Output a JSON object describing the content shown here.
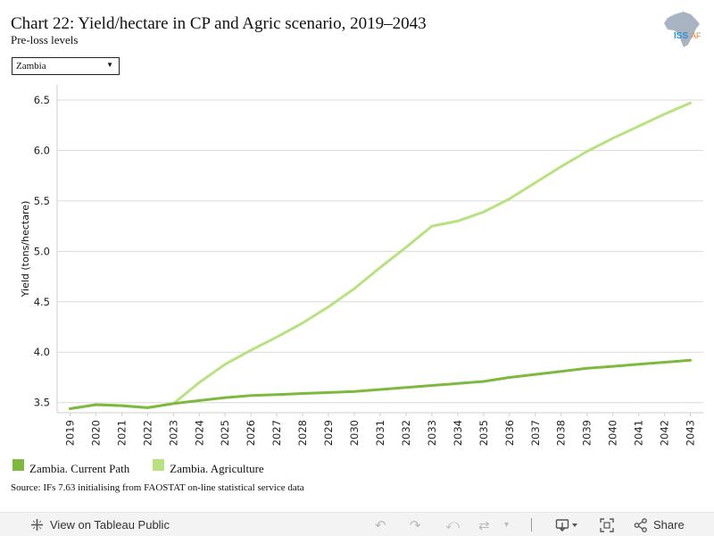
{
  "header": {
    "title": "Chart 22: Yield/hectare in CP and Agric scenario, 2019–2043",
    "subtitle": "Pre-loss levels",
    "logo_text": "ISS AFRICAN FUTURES"
  },
  "filter": {
    "selected": "Zambia"
  },
  "legend": {
    "items": [
      {
        "label": "Zambia. Current Path",
        "color": "#7db93f"
      },
      {
        "label": "Zambia. Agriculture",
        "color": "#b7e27f"
      }
    ]
  },
  "source": "Source: IFs 7.63 initialising from FAOSTAT on-line statistical service data",
  "toolbar": {
    "view_label": "View on Tableau Public",
    "share_label": "Share",
    "icons": [
      "tableau-icon",
      "undo-icon",
      "redo-icon",
      "revert-icon",
      "refresh-icon",
      "pause-icon",
      "download-icon",
      "fullscreen-icon",
      "share-icon"
    ]
  },
  "chart_data": {
    "type": "line",
    "title": "Chart 22: Yield/hectare in CP and Agric scenario, 2019–2043",
    "subtitle": "Pre-loss levels",
    "xlabel": "",
    "ylabel": "Yield (tons/hectare)",
    "ylim": [
      3.4,
      6.65
    ],
    "yticks": [
      "3.5",
      "4.0",
      "4.5",
      "5.0",
      "5.5",
      "6.0",
      "6.5"
    ],
    "grid": true,
    "legend_position": "bottom-left",
    "x": [
      "2019",
      "2020",
      "2021",
      "2022",
      "2023",
      "2024",
      "2025",
      "2026",
      "2027",
      "2028",
      "2029",
      "2030",
      "2031",
      "2032",
      "2033",
      "2034",
      "2035",
      "2036",
      "2037",
      "2038",
      "2039",
      "2040",
      "2041",
      "2042",
      "2043"
    ],
    "series": [
      {
        "name": "Zambia. Current Path",
        "color": "#7db93f",
        "values": [
          3.44,
          3.48,
          3.47,
          3.45,
          3.49,
          3.52,
          3.55,
          3.57,
          3.58,
          3.59,
          3.6,
          3.61,
          3.63,
          3.65,
          3.67,
          3.69,
          3.71,
          3.75,
          3.78,
          3.81,
          3.84,
          3.86,
          3.88,
          3.9,
          3.92
        ]
      },
      {
        "name": "Zambia. Agriculture",
        "color": "#b7e27f",
        "values": [
          3.44,
          3.48,
          3.47,
          3.45,
          3.49,
          3.7,
          3.88,
          4.02,
          4.15,
          4.29,
          4.45,
          4.63,
          4.84,
          5.04,
          5.25,
          5.3,
          5.39,
          5.52,
          5.68,
          5.84,
          5.99,
          6.12,
          6.24,
          6.36,
          6.47
        ]
      }
    ]
  }
}
